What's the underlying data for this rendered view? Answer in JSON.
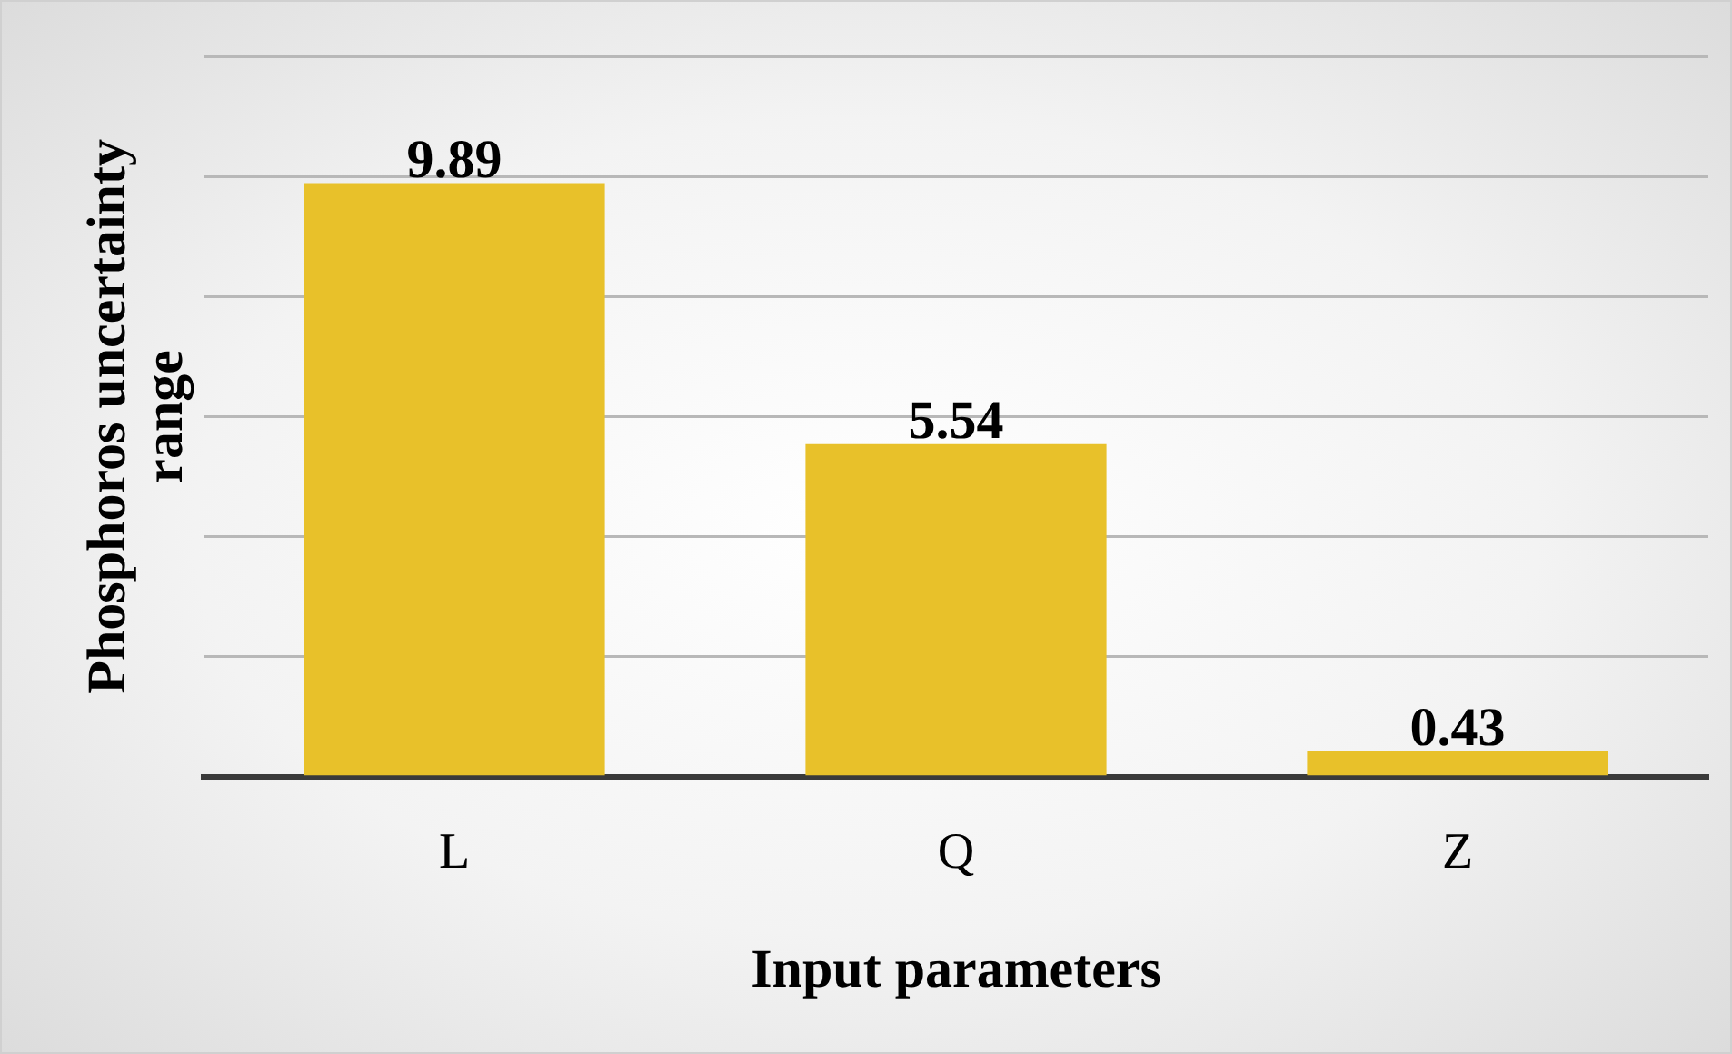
{
  "chart_data": {
    "type": "bar",
    "xlabel": "Input parameters",
    "ylabel": "Phosphoros uncertainty range",
    "categories": [
      "L",
      "Q",
      "Z"
    ],
    "values": [
      9.89,
      5.54,
      0.43
    ],
    "color": "#e8c12a",
    "ylim": [
      0,
      12
    ],
    "yticks": [
      {
        "value": 0,
        "label": null
      },
      {
        "value": 2,
        "label": null
      },
      {
        "value": 4,
        "label": null
      },
      {
        "value": 6,
        "label": null
      },
      {
        "value": 8,
        "label": null
      },
      {
        "value": 10,
        "label": null
      },
      {
        "value": 12,
        "label": null
      }
    ],
    "grid": "y",
    "data_labels": true,
    "legend": false
  }
}
